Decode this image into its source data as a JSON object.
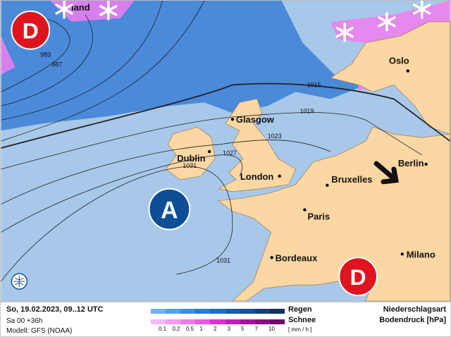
{
  "map": {
    "cities": [
      "Glasgow",
      "Dublin",
      "London",
      "Bruxelles",
      "Paris",
      "Bordeaux",
      "Milano",
      "Berlin",
      "Oslo"
    ],
    "partial_label": "land",
    "isobars": [
      "983",
      "987",
      "1015",
      "1019",
      "1023",
      "1027",
      "1031",
      "1031"
    ],
    "lows": [
      "D",
      "D"
    ],
    "highs": [
      "A"
    ],
    "colors": {
      "sea": "#a8c8ea",
      "land": "#fbd7a3",
      "rain": "#3a7fd6",
      "snow": "#f07ef0",
      "low": "#e0141e",
      "high": "#0d4f96"
    }
  },
  "legend": {
    "date": "So, 19.02.2023, 09..12 UTC",
    "run": "Sa 00 +36h",
    "model": "Modell: GFS (NOAA)",
    "rain_label": "Regen",
    "snow_label": "Schnee",
    "unit": "[ mm / h ]",
    "ticks": [
      "0.1",
      "0.2",
      "0.5",
      "1",
      "2",
      "3",
      "5",
      "7",
      "10"
    ],
    "type_label": "Niederschlagsart",
    "pressure_label": "Bodendruck [hPa]",
    "rain_colors": [
      "#6fb2f2",
      "#56a0ec",
      "#3d8de4",
      "#2a7bd9",
      "#1e6cca",
      "#1a5db4",
      "#15509e",
      "#143f7a",
      "#0f3360"
    ],
    "snow_colors": [
      "#f8b8f4",
      "#f59cf0",
      "#f07cec",
      "#ea58e6",
      "#dd30d6",
      "#c21cbc",
      "#a6129f",
      "#8a0e84",
      "#6e0a6a"
    ]
  }
}
